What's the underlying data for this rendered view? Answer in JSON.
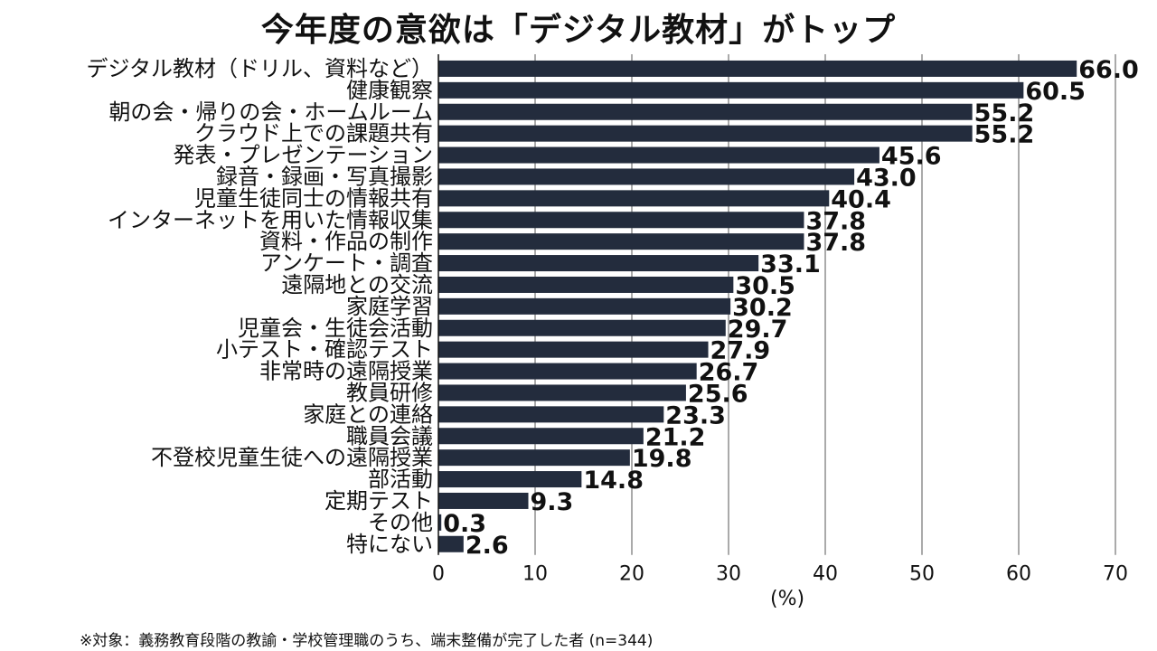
{
  "chart_data": {
    "type": "bar",
    "orientation": "horizontal",
    "title": "今年度の意欲は「デジタル教材」がトップ",
    "categories": [
      "デジタル教材（ドリル、資料など）",
      "健康観察",
      "朝の会・帰りの会・ホームルーム",
      "クラウド上での課題共有",
      "発表・プレゼンテーション",
      "録音・録画・写真撮影",
      "児童生徒同士の情報共有",
      "インターネットを用いた情報収集",
      "資料・作品の制作",
      "アンケート・調査",
      "遠隔地との交流",
      "家庭学習",
      "児童会・生徒会活動",
      "小テスト・確認テスト",
      "非常時の遠隔授業",
      "教員研修",
      "家庭との連絡",
      "職員会議",
      "不登校児童生徒への遠隔授業",
      "部活動",
      "定期テスト",
      "その他",
      "特にない"
    ],
    "values": [
      66.0,
      60.5,
      55.2,
      55.2,
      45.6,
      43.0,
      40.4,
      37.8,
      37.8,
      33.1,
      30.5,
      30.2,
      29.7,
      27.9,
      26.7,
      25.6,
      23.3,
      21.2,
      19.8,
      14.8,
      9.3,
      0.3,
      2.6
    ],
    "value_labels": [
      "66.0",
      "60.5",
      "55.2",
      "55.2",
      "45.6",
      "43.0",
      "40.4",
      "37.8",
      "37.8",
      "33.1",
      "30.5",
      "30.2",
      "29.7",
      "27.9",
      "26.7",
      "25.6",
      "23.3",
      "21.2",
      "19.8",
      "14.8",
      "9.3",
      "0.3",
      "2.6"
    ],
    "xticks": [
      "0",
      "10",
      "20",
      "30",
      "40",
      "50",
      "60",
      "70"
    ],
    "xlim": [
      0,
      70
    ],
    "xlabel": "(%)",
    "grid": true,
    "bar_color": "#232c3d"
  },
  "footnote": "※対象：義務教育段階の教諭・学校管理職のうち、端末整備が完了した者 (n=344)"
}
